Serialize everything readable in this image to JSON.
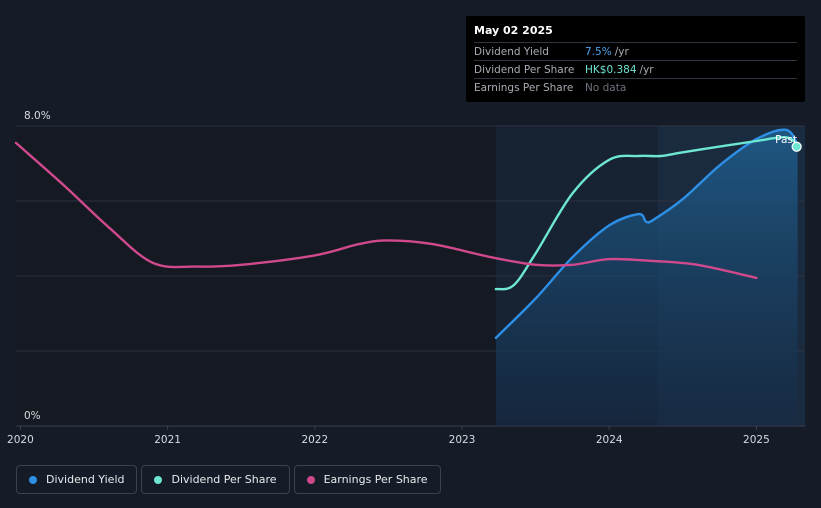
{
  "tooltip": {
    "date": "May 02 2025",
    "rows": [
      {
        "label": "Dividend Yield",
        "value": "7.5%",
        "unit": "/yr"
      },
      {
        "label": "Dividend Per Share",
        "value": "HK$0.384",
        "unit": "/yr"
      },
      {
        "label": "Earnings Per Share",
        "value": "No data",
        "unit": ""
      }
    ]
  },
  "past_label": "Past",
  "legend": [
    {
      "label": "Dividend Yield",
      "color": "#2d8fe6"
    },
    {
      "label": "Dividend Per Share",
      "color": "#6de6d2"
    },
    {
      "label": "Earnings Per Share",
      "color": "#d0498d"
    }
  ],
  "chart_data": {
    "type": "line",
    "y_tick_labels": [
      "8.0%",
      "0%"
    ],
    "ylim": [
      0,
      8.0
    ],
    "xlim": [
      2019.97,
      2025.33
    ],
    "x_ticks": [
      2020,
      2021,
      2022,
      2023,
      2024,
      2025
    ],
    "x_tick_labels": [
      "2020",
      "2021",
      "2022",
      "2023",
      "2024",
      "2025"
    ],
    "grid": true,
    "past_region_start": 2023.23,
    "forecast_shade_start": 2024.33,
    "series": [
      {
        "name": "Dividend Yield",
        "color": "#2d8fe6",
        "x": [
          2023.23,
          2023.5,
          2023.75,
          2024.0,
          2024.2,
          2024.25,
          2024.3,
          2024.5,
          2024.75,
          2025.0,
          2025.2,
          2025.28
        ],
        "y": [
          2.35,
          3.4,
          4.5,
          5.35,
          5.65,
          5.45,
          5.5,
          6.05,
          6.95,
          7.65,
          7.9,
          7.5
        ]
      },
      {
        "name": "Dividend Per Share",
        "color": "#6de6d2",
        "x": [
          2023.23,
          2023.35,
          2023.5,
          2023.75,
          2024.0,
          2024.2,
          2024.35,
          2024.5,
          2024.75,
          2025.0,
          2025.2,
          2025.28
        ],
        "y": [
          3.65,
          3.75,
          4.6,
          6.2,
          7.1,
          7.2,
          7.2,
          7.3,
          7.45,
          7.6,
          7.7,
          7.5
        ]
      },
      {
        "name": "Earnings Per Share",
        "color": "#d0498d",
        "x": [
          2019.97,
          2020.3,
          2020.6,
          2020.9,
          2021.2,
          2021.5,
          2022.0,
          2022.3,
          2022.5,
          2022.8,
          2023.2,
          2023.5,
          2023.75,
          2024.0,
          2024.3,
          2024.6,
          2025.0
        ],
        "y": [
          7.55,
          6.4,
          5.3,
          4.35,
          4.25,
          4.3,
          4.55,
          4.85,
          4.95,
          4.85,
          4.5,
          4.3,
          4.3,
          4.45,
          4.4,
          4.3,
          3.95
        ]
      }
    ]
  }
}
